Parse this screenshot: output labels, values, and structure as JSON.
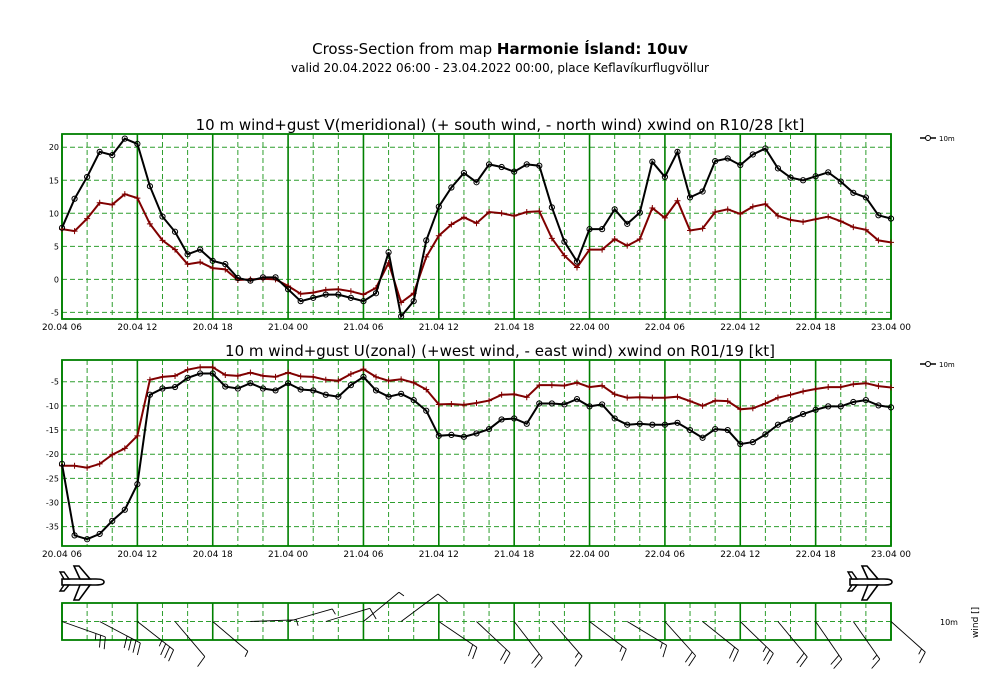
{
  "title_prefix": "Cross-Section from map ",
  "title_bold": "Harmonie Ísland: 10uv",
  "subtitle": "valid 20.04.2022 06:00 - 23.04.2022 00:00, place Keflavíkurflugvöllur",
  "colors": {
    "grid": "#008000",
    "gridDash": "#2e9e2e",
    "series_10m": "#000000",
    "series_gust": "#800000"
  },
  "icons": [
    "airplane-icon",
    "airplane-icon"
  ],
  "wind_axis_label": "wind []",
  "wind_level_label": "10m",
  "chart_data": [
    {
      "type": "line",
      "title": "10 m wind+gust V(meridional) (+ south wind, - north wind) xwind on R10/28 [kt]",
      "x_tick_labels": [
        "20.04 06",
        "20.04 12",
        "20.04 18",
        "21.04 00",
        "21.04 06",
        "21.04 12",
        "21.04 18",
        "22.04 00",
        "22.04 06",
        "22.04 12",
        "22.04 18",
        "23.04 00"
      ],
      "x_unit": "hours after 20.04 06",
      "xlim": [
        0,
        66
      ],
      "ylim": [
        -6,
        22
      ],
      "yticks": [
        -5,
        0,
        5,
        10,
        15,
        20
      ],
      "legend": "right",
      "series": [
        {
          "name": "10m",
          "marker": "circle",
          "color": "#000000",
          "x": [
            0,
            1,
            2,
            3,
            4,
            5,
            6,
            7,
            8,
            9,
            10,
            11,
            12,
            13,
            14,
            15,
            16,
            17,
            18,
            19,
            20,
            21,
            22,
            23,
            24,
            25,
            26,
            27,
            28,
            29,
            30,
            31,
            32,
            33,
            34,
            35,
            36,
            37,
            38,
            39,
            40,
            41,
            42,
            43,
            44,
            45,
            46,
            47,
            48,
            49,
            50,
            51,
            52,
            53,
            54,
            55,
            56,
            57,
            58,
            59,
            60,
            61,
            62,
            63,
            64,
            65,
            66
          ],
          "values": [
            7.8,
            12.2,
            15.5,
            19.3,
            18.8,
            21.3,
            20.5,
            14.1,
            9.5,
            7.2,
            3.8,
            4.5,
            2.8,
            2.3,
            0.2,
            -0.2,
            0.3,
            0.3,
            -1.5,
            -3.3,
            -2.8,
            -2.3,
            -2.3,
            -2.8,
            -3.3,
            -2.1,
            4.1,
            -5.6,
            -3.3,
            5.9,
            11.0,
            13.9,
            16.1,
            14.7,
            17.4,
            17.0,
            16.3,
            17.4,
            17.2,
            10.9,
            5.7,
            2.7,
            7.6,
            7.6,
            10.6,
            8.4,
            10.1,
            17.8,
            15.5,
            19.3,
            12.4,
            13.3,
            17.9,
            18.3,
            17.3,
            18.9,
            19.8,
            16.8,
            15.4,
            15.0,
            15.6,
            16.2,
            14.8,
            13.1,
            12.4,
            9.7,
            9.2
          ]
        },
        {
          "name": "",
          "marker": "plus",
          "color": "#800000",
          "x": [
            0,
            1,
            2,
            3,
            4,
            5,
            6,
            7,
            8,
            9,
            10,
            11,
            12,
            13,
            14,
            15,
            16,
            17,
            18,
            19,
            20,
            21,
            22,
            23,
            24,
            25,
            26,
            27,
            28,
            29,
            30,
            31,
            32,
            33,
            34,
            35,
            36,
            37,
            38,
            39,
            40,
            41,
            42,
            43,
            44,
            45,
            46,
            47,
            48,
            49,
            50,
            51,
            52,
            53,
            54,
            55,
            56,
            57,
            58,
            59,
            60,
            61,
            62,
            63,
            64,
            65,
            66
          ],
          "values": [
            7.6,
            7.3,
            9.2,
            11.6,
            11.3,
            12.9,
            12.3,
            8.4,
            5.9,
            4.5,
            2.3,
            2.6,
            1.7,
            1.5,
            -0.1,
            0.0,
            0.1,
            0.0,
            -1.0,
            -2.2,
            -2.0,
            -1.6,
            -1.5,
            -1.8,
            -2.3,
            -1.3,
            2.5,
            -3.5,
            -2.1,
            3.4,
            6.6,
            8.3,
            9.4,
            8.5,
            10.2,
            10.0,
            9.6,
            10.2,
            10.3,
            6.2,
            3.6,
            1.8,
            4.5,
            4.5,
            6.1,
            5.1,
            6.1,
            10.8,
            9.3,
            11.9,
            7.4,
            7.7,
            10.2,
            10.6,
            9.9,
            11.0,
            11.4,
            9.6,
            9.0,
            8.7,
            9.1,
            9.5,
            8.8,
            7.9,
            7.5,
            5.9,
            5.6
          ]
        }
      ]
    },
    {
      "type": "line",
      "title": "10 m wind+gust U(zonal) (+west wind, - east wind) xwind on R01/19 [kt]",
      "x_tick_labels": [
        "20.04 06",
        "20.04 12",
        "20.04 18",
        "21.04 00",
        "21.04 06",
        "21.04 12",
        "21.04 18",
        "22.04 00",
        "22.04 06",
        "22.04 12",
        "22.04 18",
        "23.04 00"
      ],
      "x_unit": "hours after 20.04 06",
      "xlim": [
        0,
        66
      ],
      "ylim": [
        -39,
        -0.5
      ],
      "yticks": [
        -35,
        -30,
        -25,
        -20,
        -15,
        -10,
        -5
      ],
      "legend": "right",
      "series": [
        {
          "name": "10m",
          "marker": "circle",
          "color": "#000000",
          "x": [
            0,
            1,
            2,
            3,
            4,
            5,
            6,
            7,
            8,
            9,
            10,
            11,
            12,
            13,
            14,
            15,
            16,
            17,
            18,
            19,
            20,
            21,
            22,
            23,
            24,
            25,
            26,
            27,
            28,
            29,
            30,
            31,
            32,
            33,
            34,
            35,
            36,
            37,
            38,
            39,
            40,
            41,
            42,
            43,
            44,
            45,
            46,
            47,
            48,
            49,
            50,
            51,
            52,
            53,
            54,
            55,
            56,
            57,
            58,
            59,
            60,
            61,
            62,
            63,
            64,
            65,
            66
          ],
          "values": [
            -22.0,
            -36.8,
            -37.6,
            -36.5,
            -33.8,
            -31.5,
            -26.2,
            -7.7,
            -6.4,
            -6.1,
            -4.2,
            -3.3,
            -3.3,
            -6.0,
            -6.4,
            -5.3,
            -6.4,
            -6.8,
            -5.3,
            -6.6,
            -6.8,
            -7.7,
            -8.1,
            -5.7,
            -4.0,
            -6.8,
            -8.1,
            -7.5,
            -8.8,
            -11.0,
            -16.2,
            -16.0,
            -16.4,
            -15.7,
            -14.8,
            -12.8,
            -12.6,
            -13.7,
            -9.5,
            -9.5,
            -9.7,
            -8.6,
            -10.1,
            -9.7,
            -12.6,
            -13.9,
            -13.7,
            -13.9,
            -13.9,
            -13.5,
            -15.0,
            -16.6,
            -14.8,
            -15.0,
            -17.9,
            -17.5,
            -15.9,
            -13.9,
            -12.8,
            -11.7,
            -10.8,
            -10.1,
            -10.1,
            -9.2,
            -8.8,
            -9.9,
            -10.3
          ]
        },
        {
          "name": "",
          "marker": "plus",
          "color": "#800000",
          "x": [
            0,
            1,
            2,
            3,
            4,
            5,
            6,
            7,
            8,
            9,
            10,
            11,
            12,
            13,
            14,
            15,
            16,
            17,
            18,
            19,
            20,
            21,
            22,
            23,
            24,
            25,
            26,
            27,
            28,
            29,
            30,
            31,
            32,
            33,
            34,
            35,
            36,
            37,
            38,
            39,
            40,
            41,
            42,
            43,
            44,
            45,
            46,
            47,
            48,
            49,
            50,
            51,
            52,
            53,
            54,
            55,
            56,
            57,
            58,
            59,
            60,
            61,
            62,
            63,
            64,
            65,
            66
          ],
          "values": [
            -22.4,
            -22.4,
            -22.8,
            -22.0,
            -20.1,
            -18.8,
            -16.2,
            -4.6,
            -4.0,
            -3.8,
            -2.5,
            -2.0,
            -2.0,
            -3.6,
            -3.8,
            -3.1,
            -3.8,
            -4.0,
            -3.1,
            -3.9,
            -4.0,
            -4.6,
            -4.8,
            -3.4,
            -2.4,
            -4.0,
            -4.8,
            -4.5,
            -5.2,
            -6.6,
            -9.7,
            -9.6,
            -9.8,
            -9.4,
            -8.9,
            -7.7,
            -7.6,
            -8.2,
            -5.7,
            -5.7,
            -5.8,
            -5.2,
            -6.1,
            -5.8,
            -7.6,
            -8.3,
            -8.2,
            -8.3,
            -8.3,
            -8.1,
            -9.0,
            -10.0,
            -8.9,
            -9.0,
            -10.7,
            -10.5,
            -9.5,
            -8.3,
            -7.7,
            -7.0,
            -6.5,
            -6.1,
            -6.1,
            -5.5,
            -5.3,
            -5.9,
            -6.2
          ]
        }
      ]
    },
    {
      "type": "wind-barbs",
      "level": "10m",
      "x_unit": "hours after 20.04 06",
      "note_source": "barbs drawn from hourly 10m wind (u,v) of the two panels above",
      "barb_every": 3
    }
  ]
}
